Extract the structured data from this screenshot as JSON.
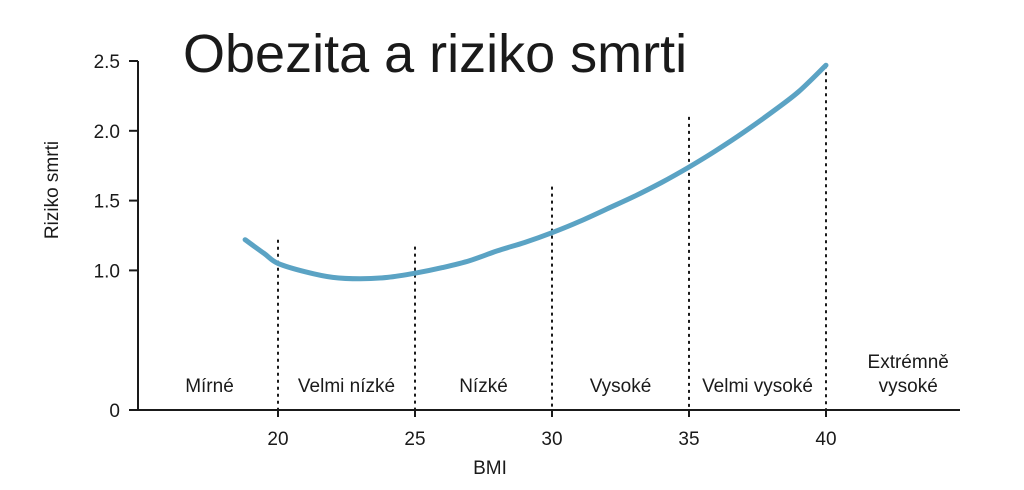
{
  "chart_data": {
    "type": "line",
    "title": "Obezita a riziko smrti",
    "xlabel": "BMI",
    "ylabel": "Riziko smrti",
    "xlim": [
      15,
      45
    ],
    "ylim": [
      0,
      2.5
    ],
    "x_ticks": [
      20,
      25,
      30,
      35,
      40
    ],
    "x_tick_labels": [
      "20",
      "25",
      "30",
      "35",
      "40"
    ],
    "y_ticks": [
      0,
      1.0,
      1.5,
      2.0,
      2.5
    ],
    "y_tick_labels": [
      "0",
      "1.0",
      "1.5",
      "2.0",
      "2.5"
    ],
    "grid": false,
    "line_color": "#5ba3c4",
    "series": [
      {
        "x": [
          18.8,
          19.5,
          20.0,
          21.0,
          22.0,
          23.0,
          24.0,
          25.0,
          26.0,
          27.0,
          28.0,
          29.0,
          30.0,
          31.0,
          32.0,
          33.0,
          34.0,
          35.0,
          36.0,
          37.0,
          38.0,
          39.0,
          40.0
        ],
        "values": [
          1.22,
          1.12,
          1.05,
          0.99,
          0.95,
          0.94,
          0.95,
          0.98,
          1.02,
          1.07,
          1.14,
          1.2,
          1.27,
          1.35,
          1.44,
          1.53,
          1.63,
          1.74,
          1.86,
          1.99,
          2.13,
          2.28,
          2.47
        ]
      }
    ],
    "boundaries": [
      {
        "x": 20,
        "y_top": 1.22
      },
      {
        "x": 25,
        "y_top": 1.17
      },
      {
        "x": 30,
        "y_top": 1.6
      },
      {
        "x": 35,
        "y_top": 2.1
      },
      {
        "x": 40,
        "y_top": 2.47
      }
    ],
    "zones": [
      {
        "x": 17.5,
        "lines": [
          "Mírné"
        ]
      },
      {
        "x": 22.5,
        "lines": [
          "Velmi nízké"
        ]
      },
      {
        "x": 27.5,
        "lines": [
          "Nízké"
        ]
      },
      {
        "x": 32.5,
        "lines": [
          "Vysoké"
        ]
      },
      {
        "x": 37.5,
        "lines": [
          "Velmi vysoké"
        ]
      },
      {
        "x": 43.0,
        "lines": [
          "Extrémně",
          "vysoké"
        ]
      }
    ]
  }
}
